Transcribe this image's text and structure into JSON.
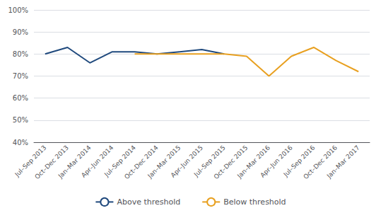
{
  "chart_data": {
    "type": "line",
    "categories": [
      "Jul–Sep 2013",
      "Oct–Dec 2013",
      "Jan–Mar 2014",
      "Apr–Jun 2014",
      "Jul–Sep 2014",
      "Oct–Dec 2014",
      "Jan–Mar 2015",
      "Apr–Jun 2015",
      "Jul–Sep 2015",
      "Oct–Dec 2015",
      "Jan–Mar 2016",
      "Apr–Jun 2016",
      "Jul–Sep 2016",
      "Oct–Dec 2016",
      "Jan–Mar 2017"
    ],
    "series": [
      {
        "name": "Above threshold",
        "color": "#1F497D",
        "values": [
          80,
          83,
          76,
          81,
          81,
          80,
          81,
          82,
          80,
          null,
          null,
          null,
          null,
          null,
          null
        ]
      },
      {
        "name": "Below threshold",
        "color": "#E8A020",
        "values": [
          null,
          null,
          null,
          null,
          80,
          80,
          80,
          80,
          80,
          79,
          70,
          79,
          83,
          77,
          72
        ]
      }
    ],
    "ylim": [
      40,
      100
    ],
    "yticks": [
      {
        "value": 40,
        "label": "40%"
      },
      {
        "value": 50,
        "label": "50%"
      },
      {
        "value": 60,
        "label": "60%"
      },
      {
        "value": 70,
        "label": "70%"
      },
      {
        "value": 80,
        "label": "80%"
      },
      {
        "value": 90,
        "label": "90%"
      },
      {
        "value": 100,
        "label": "100%"
      }
    ],
    "grid": true,
    "legend": "bottom"
  }
}
